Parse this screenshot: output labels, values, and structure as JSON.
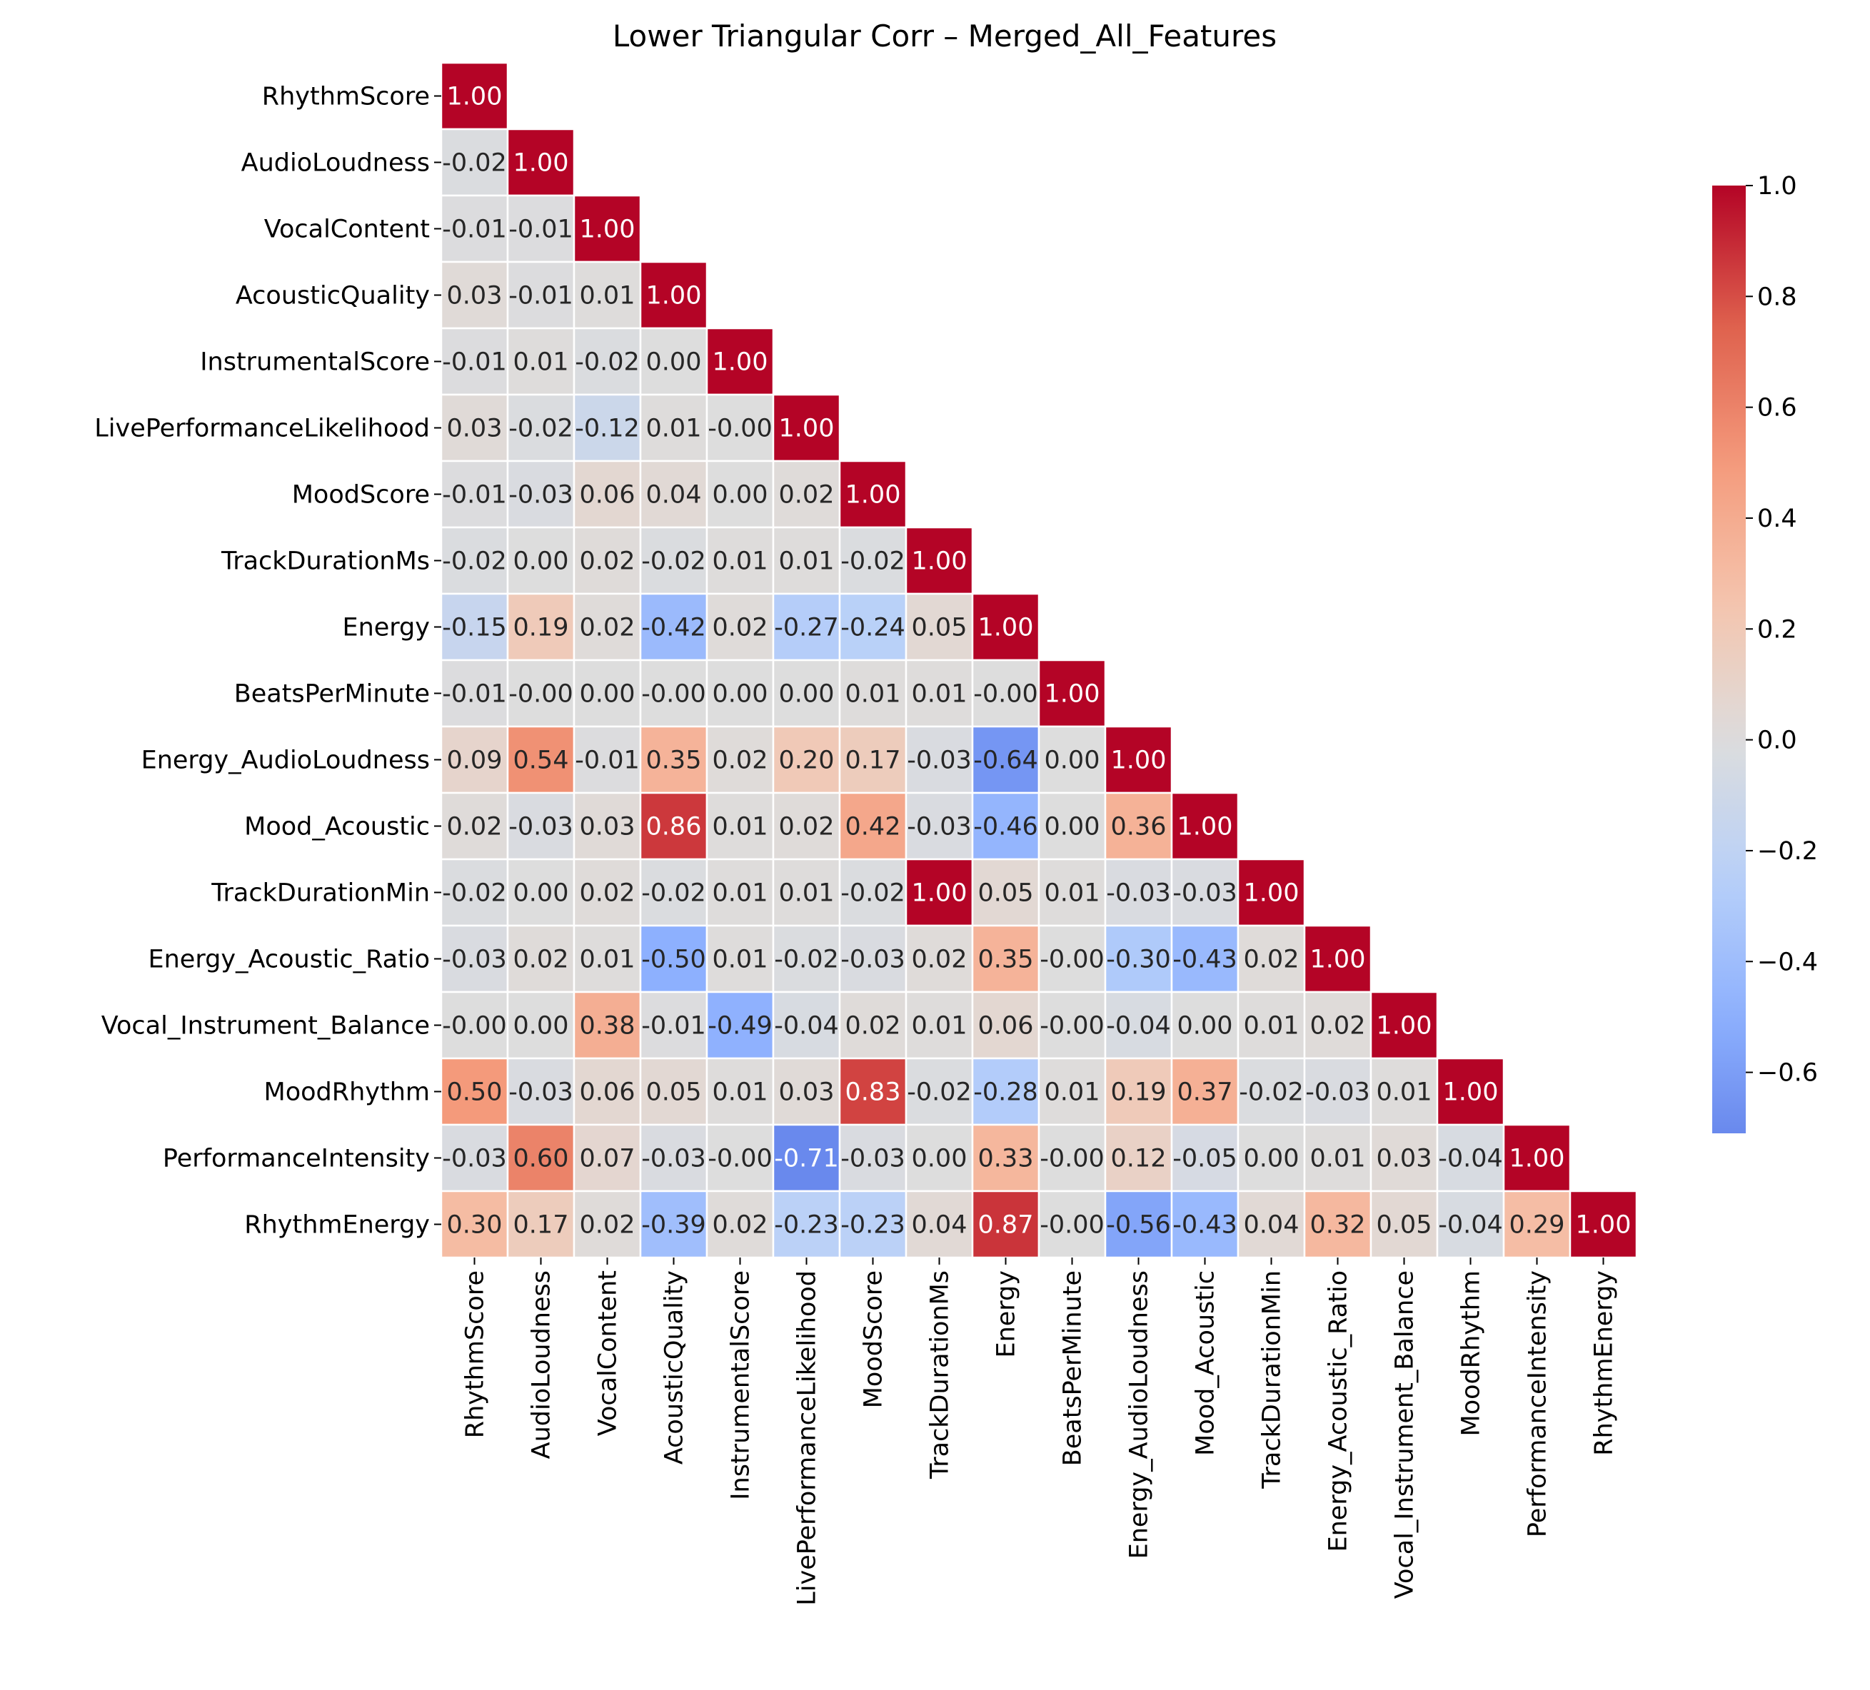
{
  "chart_data": {
    "type": "heatmap",
    "title": "Lower Triangular Corr – Merged_All_Features",
    "labels": [
      "RhythmScore",
      "AudioLoudness",
      "VocalContent",
      "AcousticQuality",
      "InstrumentalScore",
      "LivePerformanceLikelihood",
      "MoodScore",
      "TrackDurationMs",
      "Energy",
      "BeatsPerMinute",
      "Energy_AudioLoudness",
      "Mood_Acoustic",
      "TrackDurationMin",
      "Energy_Acoustic_Ratio",
      "Vocal_Instrument_Balance",
      "MoodRhythm",
      "PerformanceIntensity",
      "RhythmEnergy"
    ],
    "values": [
      [
        1.0
      ],
      [
        -0.02,
        1.0
      ],
      [
        -0.01,
        -0.01,
        1.0
      ],
      [
        0.03,
        -0.01,
        0.01,
        1.0
      ],
      [
        -0.01,
        0.01,
        -0.02,
        0.0,
        1.0
      ],
      [
        0.03,
        -0.02,
        -0.12,
        0.01,
        -0.0,
        1.0
      ],
      [
        -0.01,
        -0.03,
        0.06,
        0.04,
        0.0,
        0.02,
        1.0
      ],
      [
        -0.02,
        0.0,
        0.02,
        -0.02,
        0.01,
        0.01,
        -0.02,
        1.0
      ],
      [
        -0.15,
        0.19,
        0.02,
        -0.42,
        0.02,
        -0.27,
        -0.24,
        0.05,
        1.0
      ],
      [
        -0.01,
        -0.0,
        0.0,
        -0.0,
        0.0,
        0.0,
        0.01,
        0.01,
        -0.0,
        1.0
      ],
      [
        0.09,
        0.54,
        -0.01,
        0.35,
        0.02,
        0.2,
        0.17,
        -0.03,
        -0.64,
        0.0,
        1.0
      ],
      [
        0.02,
        -0.03,
        0.03,
        0.86,
        0.01,
        0.02,
        0.42,
        -0.03,
        -0.46,
        0.0,
        0.36,
        1.0
      ],
      [
        -0.02,
        0.0,
        0.02,
        -0.02,
        0.01,
        0.01,
        -0.02,
        1.0,
        0.05,
        0.01,
        -0.03,
        -0.03,
        1.0
      ],
      [
        -0.03,
        0.02,
        0.01,
        -0.5,
        0.01,
        -0.02,
        -0.03,
        0.02,
        0.35,
        -0.0,
        -0.3,
        -0.43,
        0.02,
        1.0
      ],
      [
        -0.0,
        0.0,
        0.38,
        -0.01,
        -0.49,
        -0.04,
        0.02,
        0.01,
        0.06,
        -0.0,
        -0.04,
        0.0,
        0.01,
        0.02,
        1.0
      ],
      [
        0.5,
        -0.03,
        0.06,
        0.05,
        0.01,
        0.03,
        0.83,
        -0.02,
        -0.28,
        0.01,
        0.19,
        0.37,
        -0.02,
        -0.03,
        0.01,
        1.0
      ],
      [
        -0.03,
        0.6,
        0.07,
        -0.03,
        -0.0,
        -0.71,
        -0.03,
        0.0,
        0.33,
        -0.0,
        0.12,
        -0.05,
        0.0,
        0.01,
        0.03,
        -0.04,
        1.0
      ],
      [
        0.3,
        0.17,
        0.02,
        -0.39,
        0.02,
        -0.23,
        -0.23,
        0.04,
        0.87,
        -0.0,
        -0.56,
        -0.43,
        0.04,
        0.32,
        0.05,
        -0.04,
        0.29,
        1.0
      ]
    ],
    "cell_labels": [
      [
        "1.00"
      ],
      [
        "-0.02",
        "1.00"
      ],
      [
        "-0.01",
        "-0.01",
        "1.00"
      ],
      [
        "0.03",
        "-0.01",
        "0.01",
        "1.00"
      ],
      [
        "-0.01",
        "0.01",
        "-0.02",
        "0.00",
        "1.00"
      ],
      [
        "0.03",
        "-0.02",
        "-0.12",
        "0.01",
        "-0.00",
        "1.00"
      ],
      [
        "-0.01",
        "-0.03",
        "0.06",
        "0.04",
        "0.00",
        "0.02",
        "1.00"
      ],
      [
        "-0.02",
        "0.00",
        "0.02",
        "-0.02",
        "0.01",
        "0.01",
        "-0.02",
        "1.00"
      ],
      [
        "-0.15",
        "0.19",
        "0.02",
        "-0.42",
        "0.02",
        "-0.27",
        "-0.24",
        "0.05",
        "1.00"
      ],
      [
        "-0.01",
        "-0.00",
        "0.00",
        "-0.00",
        "0.00",
        "0.00",
        "0.01",
        "0.01",
        "-0.00",
        "1.00"
      ],
      [
        "0.09",
        "0.54",
        "-0.01",
        "0.35",
        "0.02",
        "0.20",
        "0.17",
        "-0.03",
        "-0.64",
        "0.00",
        "1.00"
      ],
      [
        "0.02",
        "-0.03",
        "0.03",
        "0.86",
        "0.01",
        "0.02",
        "0.42",
        "-0.03",
        "-0.46",
        "0.00",
        "0.36",
        "1.00"
      ],
      [
        "-0.02",
        "0.00",
        "0.02",
        "-0.02",
        "0.01",
        "0.01",
        "-0.02",
        "1.00",
        "0.05",
        "0.01",
        "-0.03",
        "-0.03",
        "1.00"
      ],
      [
        "-0.03",
        "0.02",
        "0.01",
        "-0.50",
        "0.01",
        "-0.02",
        "-0.03",
        "0.02",
        "0.35",
        "-0.00",
        "-0.30",
        "-0.43",
        "0.02",
        "1.00"
      ],
      [
        "-0.00",
        "0.00",
        "0.38",
        "-0.01",
        "-0.49",
        "-0.04",
        "0.02",
        "0.01",
        "0.06",
        "-0.00",
        "-0.04",
        "0.00",
        "0.01",
        "0.02",
        "1.00"
      ],
      [
        "0.50",
        "-0.03",
        "0.06",
        "0.05",
        "0.01",
        "0.03",
        "0.83",
        "-0.02",
        "-0.28",
        "0.01",
        "0.19",
        "0.37",
        "-0.02",
        "-0.03",
        "0.01",
        "1.00"
      ],
      [
        "-0.03",
        "0.60",
        "0.07",
        "-0.03",
        "-0.00",
        "-0.71",
        "-0.03",
        "0.00",
        "0.33",
        "-0.00",
        "0.12",
        "-0.05",
        "0.00",
        "0.01",
        "0.03",
        "-0.04",
        "1.00"
      ],
      [
        "0.30",
        "0.17",
        "0.02",
        "-0.39",
        "0.02",
        "-0.23",
        "-0.23",
        "0.04",
        "0.87",
        "-0.00",
        "-0.56",
        "-0.43",
        "0.04",
        "0.32",
        "0.05",
        "-0.04",
        "0.29",
        "1.00"
      ]
    ],
    "colormap": "coolwarm",
    "vmin": -0.71,
    "vmax": 1.0,
    "center": 0,
    "colorbar_ticks": [
      "1.0",
      "0.8",
      "0.6",
      "0.4",
      "0.2",
      "0.0",
      "−0.2",
      "−0.4",
      "−0.6"
    ],
    "colorbar_tick_values": [
      1.0,
      0.8,
      0.6,
      0.4,
      0.2,
      0.0,
      -0.2,
      -0.4,
      -0.6
    ],
    "grid_color": "#ffffff"
  }
}
